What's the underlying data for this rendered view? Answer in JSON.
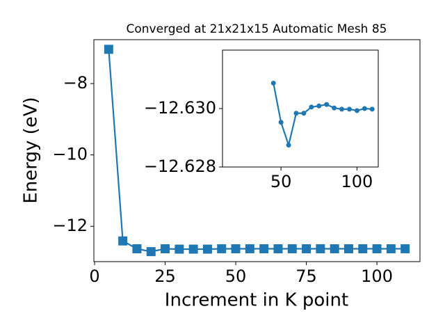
{
  "chart_data": [
    {
      "type": "line",
      "title": "Converged at 21x21x15 Automatic Mesh 85",
      "x_label": "Increment in K point",
      "y_label": "Energy (eV)",
      "color": "#1f77b4",
      "marker": "square",
      "x": [
        5,
        10,
        15,
        20,
        25,
        30,
        35,
        40,
        45,
        50,
        55,
        60,
        65,
        70,
        75,
        80,
        85,
        90,
        95,
        100,
        105,
        110
      ],
      "values": [
        -7.04,
        -12.41,
        -12.63,
        -12.71,
        -12.63,
        -12.64,
        -12.64,
        -12.64,
        -12.63,
        -12.63,
        -12.63,
        -12.63,
        -12.63,
        -12.63,
        -12.63,
        -12.63,
        -12.63,
        -12.63,
        -12.63,
        -12.63,
        -12.63,
        -12.63
      ],
      "xlim": [
        -0.25,
        115.25
      ],
      "ylim": [
        -12.99,
        -6.77
      ],
      "xticks": [
        0,
        25,
        50,
        75,
        100
      ],
      "yticks": [
        {
          "value": -12,
          "label": "−12"
        },
        {
          "value": -10,
          "label": "−10"
        },
        {
          "value": -8,
          "label": "−8"
        }
      ]
    },
    {
      "type": "line",
      "color": "#1f77b4",
      "marker": "circle",
      "x": [
        45,
        50,
        55,
        60,
        65,
        70,
        75,
        80,
        85,
        90,
        95,
        100,
        105,
        110
      ],
      "values": [
        -12.63087,
        -12.62953,
        -12.62875,
        -12.62984,
        -12.62984,
        -12.63005,
        -12.63009,
        -12.63014,
        -12.63002,
        -12.62998,
        -12.62998,
        -12.62993,
        -12.63,
        -12.62998
      ],
      "xlim": [
        11.5,
        114
      ],
      "ylim": [
        -12.628,
        -12.632
      ],
      "xticks": [
        50,
        100
      ],
      "yticks": [
        {
          "value": -12.63,
          "label": "−12.630"
        },
        {
          "value": -12.628,
          "label": "−12.628"
        }
      ]
    }
  ]
}
